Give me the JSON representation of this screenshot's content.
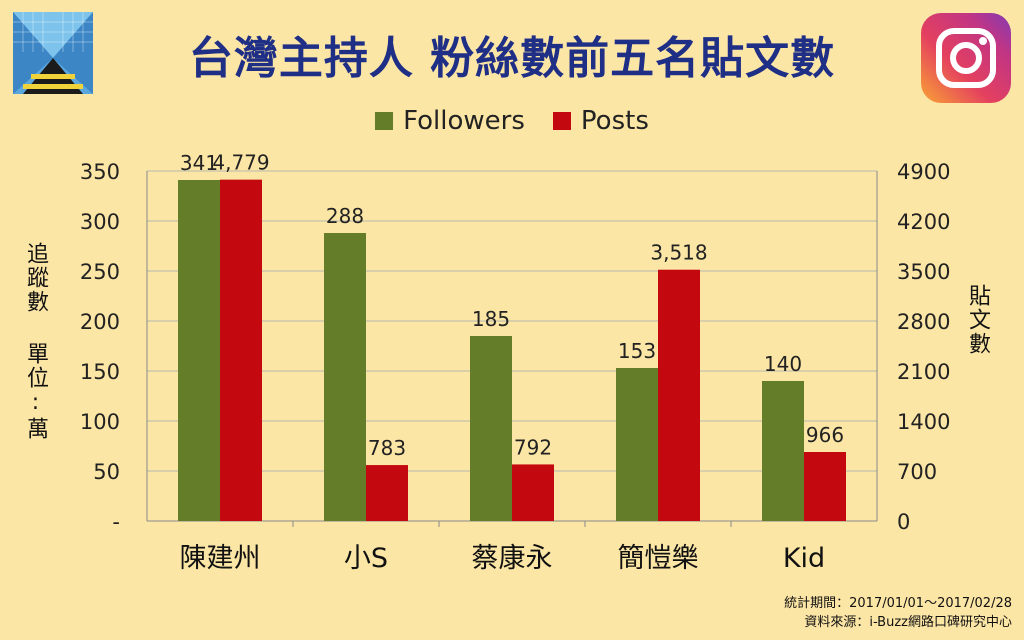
{
  "title": "台灣主持人 粉絲數前五名貼文數",
  "legend": [
    {
      "label": "Followers",
      "color": "#637d28"
    },
    {
      "label": "Posts",
      "color": "#c40810"
    }
  ],
  "left_axis_label": "追蹤數",
  "left_axis_unit": "單位:萬",
  "right_axis_label": "貼文數",
  "footnote": {
    "period": "統計期間：2017/01/01～2017/02/28",
    "source": "資料來源：i-Buzz網路口碑研究中心"
  },
  "icons": {
    "left_logo": "i-buzz-logo-icon",
    "right_logo": "instagram-icon"
  },
  "colors": {
    "background": "#fce6a6",
    "title": "#1f2f86",
    "followers": "#637d28",
    "posts": "#c40810"
  },
  "chart_data": {
    "type": "bar",
    "categories": [
      "陳建州",
      "小S",
      "蔡康永",
      "簡愷樂",
      "Kid"
    ],
    "series": [
      {
        "name": "Followers",
        "axis": "left",
        "values": [
          341,
          288,
          185,
          153,
          140
        ],
        "labels": [
          "341",
          "288",
          "185",
          "153",
          "140"
        ]
      },
      {
        "name": "Posts",
        "axis": "right",
        "values": [
          4779,
          783,
          792,
          3518,
          966
        ],
        "labels": [
          "4,779",
          "783",
          "792",
          "3,518",
          "966"
        ]
      }
    ],
    "y_left": {
      "range": [
        0,
        350
      ],
      "ticks": [
        0,
        50,
        100,
        150,
        200,
        250,
        300,
        350
      ],
      "tick_labels": [
        "-",
        "50",
        "100",
        "150",
        "200",
        "250",
        "300",
        "350"
      ]
    },
    "y_right": {
      "range": [
        0,
        4900
      ],
      "ticks": [
        0,
        700,
        1400,
        2100,
        2800,
        3500,
        4200,
        4900
      ],
      "tick_labels": [
        "0",
        "700",
        "1400",
        "2100",
        "2800",
        "3500",
        "4200",
        "4900"
      ]
    },
    "grid": true,
    "legend_position": "top-center"
  }
}
